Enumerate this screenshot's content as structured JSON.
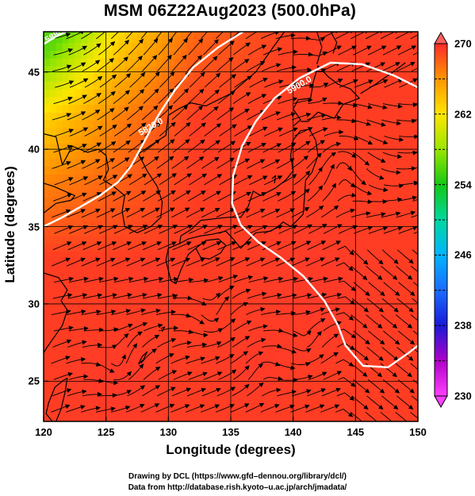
{
  "title": "MSM 06Z22Aug2023 (500.0hPa)",
  "xlabel": "Longitude (degrees)",
  "ylabel": "Latitude  (degrees)",
  "credits": [
    "Drawing by DCL (https://www.gfd–dennou.org/library/dcl/)",
    "Data from http://database.rish.kyoto–u.ac.jp/arch/jmadata/"
  ],
  "chart_data": {
    "type": "heatmap",
    "title": "MSM 06Z22Aug2023 (500.0hPa)",
    "xlabel": "Longitude (degrees)",
    "ylabel": "Latitude  (degrees)",
    "xlim": [
      120,
      150
    ],
    "ylim": [
      22.4,
      47.6
    ],
    "x_ticks": [
      120,
      125,
      130,
      135,
      140,
      145,
      150
    ],
    "y_ticks": [
      25,
      30,
      35,
      40,
      45
    ],
    "grid": true,
    "colorbar": {
      "min": 230,
      "max": 270,
      "ticks": [
        230,
        238,
        246,
        254,
        262,
        270
      ],
      "stops": [
        {
          "value": 230,
          "color": "#ff40ff"
        },
        {
          "value": 234,
          "color": "#b000c8"
        },
        {
          "value": 238,
          "color": "#1a1ad8"
        },
        {
          "value": 242,
          "color": "#1a6cff"
        },
        {
          "value": 246,
          "color": "#00b4ff"
        },
        {
          "value": 250,
          "color": "#00d8a0"
        },
        {
          "value": 254,
          "color": "#14c814"
        },
        {
          "value": 258,
          "color": "#9ae600"
        },
        {
          "value": 262,
          "color": "#ffe600"
        },
        {
          "value": 266,
          "color": "#ff9600"
        },
        {
          "value": 270,
          "color": "#ff2a2a"
        }
      ]
    },
    "contours": [
      {
        "label": "5820.0",
        "label_pos": [
          128.7,
          41.3
        ],
        "points": [
          [
            120,
            35
          ],
          [
            121.5,
            35.6
          ],
          [
            123,
            36.3
          ],
          [
            124.5,
            37.0
          ],
          [
            126,
            37.9
          ],
          [
            127,
            38.9
          ],
          [
            128,
            40.4
          ],
          [
            129.2,
            42.2
          ],
          [
            130.5,
            43.8
          ],
          [
            132,
            45.3
          ],
          [
            134,
            46.6
          ],
          [
            136,
            47.6
          ]
        ]
      },
      {
        "label": "5880.0",
        "label_pos": [
          121.2,
          47.3
        ],
        "points": [
          [
            120,
            46.8
          ],
          [
            121,
            47.3
          ],
          [
            121.8,
            47.6
          ]
        ]
      },
      {
        "label": "5900.0",
        "label_pos": [
          140.6,
          44.0
        ],
        "points": [
          [
            150,
            44.0
          ],
          [
            148,
            44.8
          ],
          [
            145.5,
            45.5
          ],
          [
            143,
            45.6
          ],
          [
            140.5,
            44.6
          ],
          [
            138.5,
            43.3
          ],
          [
            137,
            41.8
          ],
          [
            135.9,
            40.2
          ],
          [
            135.2,
            38.3
          ],
          [
            135.1,
            36.5
          ],
          [
            135.8,
            35.1
          ],
          [
            137.2,
            34.0
          ],
          [
            139,
            33.0
          ],
          [
            140.8,
            31.8
          ],
          [
            142.5,
            30.2
          ],
          [
            143.6,
            28.6
          ],
          [
            144.2,
            27.3
          ],
          [
            145.6,
            26.0
          ],
          [
            147.6,
            25.9
          ],
          [
            149.2,
            26.8
          ],
          [
            150,
            27.3
          ]
        ]
      }
    ],
    "temperature_field_description_values": {
      "northwest_corner_K": 258,
      "west_coast_K": 262,
      "south_K": 270
    }
  }
}
